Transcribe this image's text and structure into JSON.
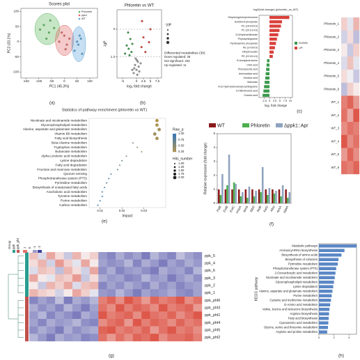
{
  "chart_data": [
    {
      "type": "scatter",
      "panel_label": "(a)",
      "title": "Scores plot",
      "xlabel": "PC1 (45.3%)",
      "ylabel": "PC2 (33.1%)",
      "xlim": [
        -170,
        130
      ],
      "ylim": [
        -120,
        110
      ],
      "xticks": [
        -150,
        -100,
        -50,
        0,
        50,
        100
      ],
      "yticks": [
        -100,
        -50,
        0,
        50,
        100
      ],
      "ellipse": true,
      "legend": "upper right",
      "series": [
        {
          "name": "Phloretin",
          "color": "#5cb85c",
          "x": [
            -95,
            -80,
            -60,
            -70,
            -40,
            -55
          ],
          "y": [
            40,
            55,
            30,
            10,
            45,
            70
          ]
        },
        {
          "name": "ppk1",
          "color": "#e06666",
          "x": [
            -20,
            0,
            10,
            -10,
            20,
            5
          ],
          "y": [
            0,
            20,
            -10,
            30,
            10,
            -25
          ]
        },
        {
          "name": "WT",
          "color": "#5ba3d9",
          "x": [
            40,
            55,
            60,
            70,
            50,
            65
          ],
          "y": [
            -30,
            -10,
            20,
            -40,
            0,
            10
          ]
        }
      ]
    },
    {
      "type": "scatter",
      "panel_label": "(b)",
      "title": "Phloretin vs WT",
      "xlabel": "log₂ fold change",
      "ylabel": "-lgP",
      "xlim": [
        -7,
        9
      ],
      "ylim": [
        0,
        4.2
      ],
      "xticks": [
        -5,
        0,
        2.5,
        5,
        7.5
      ],
      "yticks": [
        1.3,
        3
      ],
      "grid": true,
      "size_legend_title": "VIP",
      "annotations": [
        "Differential metabolites (39)",
        "Down regulated: 28",
        "Not significant: 333",
        "Up regulated: 11"
      ],
      "series": [
        {
          "name": "Down",
          "color": "#3a9a4a",
          "x": [
            -3.5,
            -2.8,
            -2.2,
            -1.8,
            -4.1,
            -1.5,
            -2.5,
            -3.0
          ],
          "y": [
            2.0,
            1.8,
            2.4,
            1.6,
            1.5,
            2.1,
            1.4,
            2.8
          ]
        },
        {
          "name": "Not significant",
          "color": "#999999",
          "x": [
            -1.0,
            -0.5,
            0,
            0.5,
            1.0,
            -0.3,
            0.3,
            0.8,
            -0.8,
            0.1,
            1.5,
            -1.5
          ],
          "y": [
            0.3,
            0.8,
            0.5,
            1.0,
            0.4,
            1.2,
            0.2,
            0.7,
            0.6,
            1.1,
            0.9,
            0.5
          ]
        },
        {
          "name": "Up",
          "color": "#d9413a",
          "x": [
            1.8,
            2.5,
            3.2,
            4.5,
            5.0,
            2.0
          ],
          "y": [
            1.9,
            2.5,
            1.6,
            2.2,
            3.0,
            3.5
          ]
        }
      ]
    },
    {
      "type": "bar",
      "orientation": "horizontal",
      "panel_label": "(c)",
      "title": "log2(fold change) (phloretin_vs_WT)",
      "xlabel": "log₂ fold change",
      "categories": [
        "Dihydroxyphenylchromone",
        "Sorbitol-6-phosphate",
        "PC (16:0/16:0)",
        "PC (20:1/14:0)",
        "3-Dehydroshikimate",
        "Phytosphingosine",
        "Pyridoxamine phosphate",
        "PE (14:0/0:0)",
        "Dihydrozeatin",
        "PE (22:0/14:0)",
        "N-Acetylputrescine",
        "Citric acid",
        "Phenylacetic acid",
        "Aminoadipic acid",
        "Gentisic acid",
        "Malonate",
        "N-(2-hydroxyhexanoyl)-sphingosine",
        "10-Nitrolinoleic acid",
        "Oxamic acid"
      ],
      "values": [
        9.5,
        6.0,
        5.5,
        4.8,
        4.2,
        3.6,
        3.1,
        2.6,
        2.0,
        1.6,
        -1.2,
        -1.4,
        -1.6,
        -1.8,
        -2.0,
        -2.3,
        -2.6,
        -2.9,
        -3.3
      ],
      "xlim": [
        -5,
        11
      ],
      "xticks": [
        -2.5,
        0,
        2.5,
        5,
        7.5,
        10
      ],
      "legend_entries": [
        {
          "name": "DOWN",
          "color": "#3a9a4a"
        },
        {
          "name": "UP",
          "color": "#d9413a"
        }
      ]
    },
    {
      "type": "heatmap",
      "rows": [
        "Phloretin_1",
        "Phloretin_2",
        "Phloretin_3",
        "Phloretin_4",
        "Phloretin_5",
        "Phloretin_6",
        "WT_1",
        "WT_2",
        "WT_3",
        "WT_4",
        "WT_5",
        "WT_6"
      ],
      "matrix": [
        [
          0.3,
          -0.2,
          0.5
        ],
        [
          -0.4,
          0.2,
          -0.6
        ],
        [
          0.1,
          -0.5,
          0.3
        ],
        [
          -0.3,
          0.4,
          -0.2
        ],
        [
          0.2,
          -0.1,
          -0.5
        ],
        [
          -0.6,
          0.3,
          0.1
        ],
        [
          0.9,
          1.1,
          0.7
        ],
        [
          1.0,
          0.6,
          1.2
        ],
        [
          0.8,
          1.0,
          0.9
        ],
        [
          1.2,
          0.8,
          1.0
        ],
        [
          0.7,
          1.1,
          0.8
        ],
        [
          1.0,
          0.9,
          1.1
        ]
      ],
      "clim": [
        -2,
        1.5
      ],
      "colors": {
        "low": "#3b3b9e",
        "mid": "#f7f7f7",
        "high": "#d7301f"
      }
    },
    {
      "type": "dot",
      "panel_label": "(e)",
      "title": "Statistics of pathway enrichment (phloretin vs WT)",
      "xlabel": "Impact",
      "categories": [
        "Nicotinate and nicotinamide metabolism",
        "Glycerophospholipid metabolism",
        "Alanine, aspartate and glutamate metabolism",
        "Vitamin B6 metabolism",
        "Fatty acid biosynthesis",
        "Beta-Alanine metabolism",
        "Tryptophan metabolism",
        "Butanoate metabolism",
        "Alpha-Linolenic acid metabolism",
        "Lysine degradation",
        "Fatty acid degradation",
        "Fructose and mannose metabolism",
        "Quorum sensing",
        "Phosphotransferase system (PTS)",
        "Pyrimidine metabolism",
        "Biosynthesis of unsaturated fatty acids",
        "Arachidonic acid metabolism",
        "Tyrosine metabolism",
        "Purine metabolism",
        "Carbon metabolism"
      ],
      "impact": [
        0.036,
        0.036,
        0.037,
        0.035,
        0.036,
        0.025,
        0.027,
        0.029,
        0.022,
        0.02,
        0.019,
        0.018,
        0.015,
        0.014,
        0.013,
        0.012,
        0.011,
        0.011,
        0.01,
        0.009
      ],
      "raw_p": [
        0.25,
        0.3,
        0.35,
        0.4,
        0.35,
        0.6,
        0.45,
        0.4,
        0.6,
        0.7,
        0.7,
        0.75,
        0.8,
        0.85,
        0.85,
        0.9,
        0.9,
        0.95,
        0.95,
        0.97
      ],
      "hits": [
        2,
        2,
        2,
        2,
        2,
        1,
        1,
        1,
        1,
        1,
        1,
        1,
        1,
        1,
        1,
        1,
        1,
        1,
        1,
        1
      ],
      "xlim": [
        0.005,
        0.04
      ],
      "xticks": [
        0.01,
        0.02,
        0.03
      ],
      "color_low": "#e0a02a",
      "color_high": "#3a78b5",
      "color_legend_title": "Raw_p",
      "color_ticks": [
        {
          "value": 1,
          "label": "1.00"
        },
        0.75,
        {
          "value": 0.5,
          "label": "0.50"
        },
        0.25
      ],
      "size_legend_title": "Hits_number",
      "size_ticks": [
        {
          "value": 1,
          "label": "1.00"
        },
        1.25,
        {
          "value": 1.5,
          "label": "1.50"
        },
        1.75,
        {
          "value": 2,
          "label": "2.00"
        }
      ]
    },
    {
      "type": "bar",
      "panel_label": "(f)",
      "ylabel": "Relative expression (fold change)",
      "categories": [
        "PslB",
        "EutB",
        "EutC",
        "ompA",
        "lamb",
        "fabD",
        "fadB",
        "katG",
        "AbsI",
        "epsA",
        "pgaA"
      ],
      "ylim": [
        0,
        5
      ],
      "yticks": [
        0,
        1,
        2,
        3,
        4,
        5
      ],
      "series": [
        {
          "name": "WT",
          "color": "#8b1a1a",
          "values": [
            1,
            1,
            1,
            1,
            1,
            1,
            1,
            1,
            1,
            1,
            1
          ]
        },
        {
          "name": "Phloretin",
          "color": "#4caf50",
          "values": [
            0.6,
            1.3,
            1.5,
            0.5,
            0.4,
            0.5,
            0.8,
            0.6,
            0.7,
            0.5,
            0.4
          ]
        },
        {
          "name": "Δppk1::Apr",
          "color": "#8fa3bf",
          "values": [
            2.1,
            3.5,
            1.4,
            0.8,
            1.2,
            0.9,
            2.6,
            1.1,
            0.9,
            1.3,
            0.8
          ]
        }
      ]
    },
    {
      "type": "heatmap",
      "panel_label": "(g)",
      "rows": [
        "ppk_5",
        "ppk_4",
        "ppk_6",
        "ppk_3",
        "ppk_2",
        "ppk_1",
        "ppk_phl6",
        "ppk_phl3",
        "ppk_phl1",
        "ppk_phl4",
        "ppk_phl5",
        "ppk_phl2"
      ],
      "row_groups": [
        "ppk",
        "ppk",
        "ppk",
        "ppk",
        "ppk",
        "ppk",
        "ppk_phl",
        "ppk_phl",
        "ppk_phl",
        "ppk_phl",
        "ppk_phl",
        "ppk_phl"
      ],
      "group_title": "Group",
      "group_legend": [
        {
          "name": "ppk",
          "color": "#2a9d8f"
        },
        {
          "name": "ppk_phl",
          "color": "#c0504d"
        }
      ],
      "clim": [
        -2,
        1.5
      ],
      "colorbar_ticks": [
        1,
        0,
        -1,
        -2
      ],
      "colors": {
        "low": "#3b3b9e",
        "mid": "#f7f7f7",
        "high": "#d7301f"
      },
      "matrix": [
        [
          0.4,
          -0.3,
          0.6,
          0.2,
          -0.5,
          0.5,
          0.1,
          0.3,
          -1.0,
          -1.2,
          -0.8,
          -1.1,
          -0.9,
          -1.3,
          -0.7,
          -1.0,
          -1.2,
          -0.6,
          -0.9,
          -1.1
        ],
        [
          0.2,
          0.5,
          -0.4,
          0.7,
          0.3,
          -0.2,
          0.6,
          0.1,
          -0.9,
          -1.1,
          -1.0,
          -0.7,
          -1.2,
          -0.8,
          -1.0,
          -1.3,
          -0.9,
          -1.1,
          -0.8,
          -1.0
        ],
        [
          -0.3,
          0.4,
          0.3,
          -0.6,
          0.5,
          0.2,
          -0.4,
          0.6,
          -1.1,
          -0.8,
          -1.2,
          -1.0,
          -0.9,
          -1.1,
          -1.3,
          -0.8,
          -1.0,
          -0.9,
          -1.2,
          -0.7
        ],
        [
          0.6,
          0.1,
          -0.2,
          0.4,
          0.3,
          0.7,
          -0.5,
          0.2,
          -0.8,
          -1.0,
          -0.9,
          -1.2,
          -1.1,
          -0.7,
          -1.0,
          -0.9,
          -1.3,
          -1.0,
          -0.8,
          -1.1
        ],
        [
          0.1,
          -0.5,
          0.5,
          0.3,
          0.6,
          -0.3,
          0.4,
          0.5,
          -1.2,
          -0.9,
          -1.1,
          -0.8,
          -1.0,
          -1.2,
          -0.8,
          -1.1,
          -0.9,
          -1.2,
          -1.0,
          -0.9
        ],
        [
          0.5,
          0.3,
          0.2,
          -0.4,
          0.1,
          0.6,
          0.3,
          -0.2,
          -1.0,
          -1.1,
          -0.7,
          -1.0,
          -1.3,
          -0.9,
          -1.1,
          -1.0,
          -0.8,
          -1.1,
          -1.2,
          -0.9
        ],
        [
          -1.2,
          -0.9,
          -1.1,
          -0.6,
          -1.3,
          -0.8,
          -1.0,
          -0.7,
          0.9,
          1.1,
          0.8,
          1.2,
          1.0,
          0.7,
          1.1,
          0.9,
          1.0,
          1.2,
          0.8,
          1.0
        ],
        [
          -0.8,
          -1.1,
          -0.9,
          -1.2,
          -0.7,
          -1.0,
          -1.3,
          -0.9,
          1.0,
          0.8,
          1.2,
          0.9,
          1.1,
          1.0,
          0.8,
          1.2,
          0.9,
          1.0,
          1.1,
          0.7
        ],
        [
          -1.0,
          -0.7,
          -1.2,
          -0.9,
          -1.1,
          -1.3,
          -0.8,
          -1.0,
          1.2,
          0.9,
          1.0,
          1.1,
          0.8,
          1.2,
          1.0,
          0.9,
          1.1,
          0.8,
          1.0,
          1.2
        ],
        [
          -0.9,
          -1.2,
          -0.8,
          -1.0,
          -0.9,
          -0.7,
          -1.1,
          -1.2,
          0.8,
          1.0,
          1.1,
          0.7,
          1.2,
          0.9,
          1.1,
          1.0,
          0.8,
          1.1,
          0.9,
          1.0
        ],
        [
          -1.1,
          -0.8,
          -1.0,
          -1.3,
          -0.8,
          -1.1,
          -0.9,
          -0.8,
          1.1,
          1.2,
          0.9,
          1.0,
          0.9,
          1.1,
          0.7,
          1.0,
          1.2,
          0.9,
          1.0,
          0.8
        ],
        [
          -0.7,
          -1.0,
          -1.3,
          -0.8,
          -1.0,
          -0.9,
          -1.2,
          -1.1,
          1.0,
          0.7,
          1.0,
          0.8,
          1.1,
          1.0,
          1.2,
          0.8,
          1.0,
          1.0,
          1.1,
          0.9
        ]
      ]
    },
    {
      "type": "bar",
      "orientation": "horizontal",
      "panel_label": "(h)",
      "ylabel": "KEGG pathway",
      "color": "#5b87c5",
      "categories": [
        "Metabolic pathways",
        "Aminoacyl-tRNA biosynthesis",
        "Biosynthesis of amino acids",
        "Biosynthesis of cofactors",
        "Pyrimidine metabolism",
        "Phosphotransferase system (PTS)",
        "2-Oxocarboxylic acid metabolism",
        "Nicotinate and nicotinamide metabolism",
        "Glycerophospholipid metabolism",
        "Lysine degradation",
        "Alanine, aspartate and glutamate metabolism",
        "Purine metabolism",
        "Cysteine and methionine metabolism",
        "D-Amino acid metabolism",
        "Valine, leucine and isoleucine biosynthesis",
        "Arginine biosynthesis",
        "Fatty acid biosynthesis",
        "Cyanoamino acid metabolism",
        "Glycine, serine and threonine metabolism",
        "Arginine and proline metabolism"
      ],
      "values": [
        5,
        3.4,
        3.0,
        2.6,
        2.5,
        2.3,
        2.2,
        2.1,
        2.0,
        1.9,
        1.8,
        1.7,
        1.6,
        1.5,
        1.4,
        1.35,
        1.3,
        1.25,
        1.2,
        1.1
      ],
      "xlim": [
        0,
        5
      ],
      "xticks": [
        0,
        2,
        4
      ]
    }
  ]
}
